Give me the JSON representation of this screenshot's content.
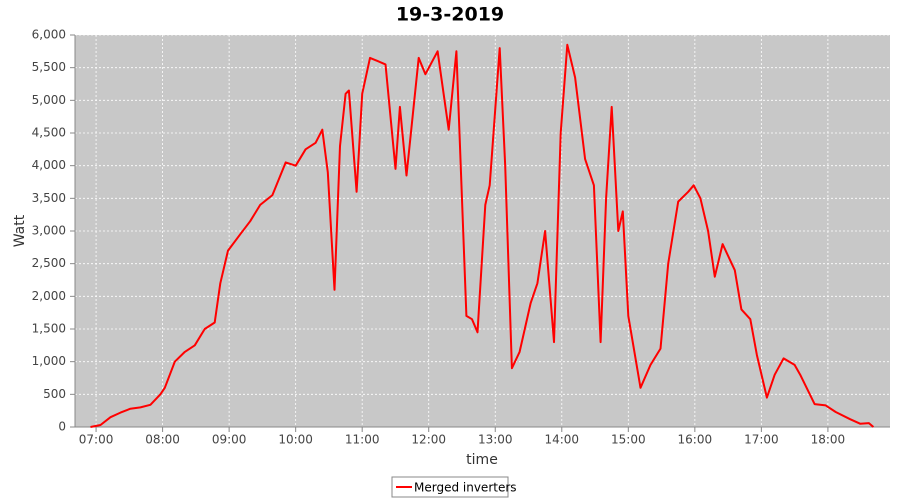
{
  "chart_data": {
    "type": "line",
    "title": "19-3-2019",
    "xlabel": "time",
    "ylabel": "Watt",
    "x": [
      "06:55",
      "07:04",
      "07:13",
      "07:22",
      "07:31",
      "07:40",
      "07:49",
      "07:58",
      "08:02",
      "08:11",
      "08:20",
      "08:29",
      "08:38",
      "08:47",
      "08:52",
      "08:59",
      "09:10",
      "09:19",
      "09:28",
      "09:39",
      "09:51",
      "10:00",
      "10:09",
      "10:18",
      "10:24",
      "10:29",
      "10:35",
      "10:40",
      "10:45",
      "10:48",
      "10:55",
      "11:00",
      "11:07",
      "11:14",
      "11:21",
      "11:30",
      "11:34",
      "11:40",
      "11:51",
      "11:57",
      "12:08",
      "12:18",
      "12:25",
      "12:34",
      "12:39",
      "12:44",
      "12:51",
      "12:55",
      "13:04",
      "13:09",
      "13:15",
      "13:22",
      "13:32",
      "13:38",
      "13:45",
      "13:53",
      "13:59",
      "14:05",
      "14:12",
      "14:21",
      "14:29",
      "14:35",
      "14:40",
      "14:45",
      "14:51",
      "14:55",
      "15:00",
      "15:11",
      "15:20",
      "15:29",
      "15:36",
      "15:45",
      "15:54",
      "15:59",
      "16:05",
      "16:12",
      "16:18",
      "16:25",
      "16:36",
      "16:42",
      "16:50",
      "16:56",
      "17:05",
      "17:12",
      "17:20",
      "17:30",
      "17:35",
      "17:48",
      "17:58",
      "18:07",
      "18:20",
      "18:29",
      "18:37",
      "18:41"
    ],
    "series": [
      {
        "name": "Merged inverters",
        "color": "#ff0000",
        "values": [
          0,
          30,
          150,
          220,
          280,
          300,
          340,
          500,
          600,
          1000,
          1150,
          1250,
          1500,
          1600,
          2200,
          2700,
          2950,
          3150,
          3400,
          3550,
          4050,
          4000,
          4250,
          4350,
          4550,
          3900,
          2100,
          4300,
          5100,
          5150,
          3600,
          5100,
          5650,
          5600,
          5550,
          3950,
          4900,
          3850,
          5650,
          5400,
          5750,
          4550,
          5750,
          1700,
          1650,
          1450,
          3400,
          3700,
          5800,
          4000,
          900,
          1150,
          1900,
          2200,
          3000,
          1300,
          4500,
          5850,
          5350,
          4100,
          3700,
          1300,
          3500,
          4900,
          3000,
          3300,
          1700,
          600,
          950,
          1200,
          2500,
          3450,
          3600,
          3700,
          3500,
          3000,
          2300,
          2800,
          2400,
          1800,
          1650,
          1100,
          450,
          800,
          1050,
          950,
          800,
          350,
          330,
          230,
          120,
          50,
          60,
          0
        ]
      }
    ],
    "xlim": [
      "06:41",
      "18:56"
    ],
    "xticks": [
      "07:00",
      "08:00",
      "09:00",
      "10:00",
      "11:00",
      "12:00",
      "13:00",
      "14:00",
      "15:00",
      "16:00",
      "17:00",
      "18:00"
    ],
    "ylim": [
      0,
      6000
    ],
    "yticks": [
      0,
      500,
      {
        "value": 1000,
        "label": "1,000"
      },
      {
        "value": 1500,
        "label": "1,500"
      },
      {
        "value": 2000,
        "label": "2,000"
      },
      {
        "value": 2500,
        "label": "2,500"
      },
      {
        "value": 3000,
        "label": "3,000"
      },
      {
        "value": 3500,
        "label": "3,500"
      },
      {
        "value": 4000,
        "label": "4,000"
      },
      {
        "value": 4500,
        "label": "4,500"
      },
      {
        "value": 5000,
        "label": "5,000"
      },
      {
        "value": 5500,
        "label": "5,500"
      },
      {
        "value": 6000,
        "label": "6,000"
      }
    ],
    "grid": true,
    "legend": "bottom"
  }
}
